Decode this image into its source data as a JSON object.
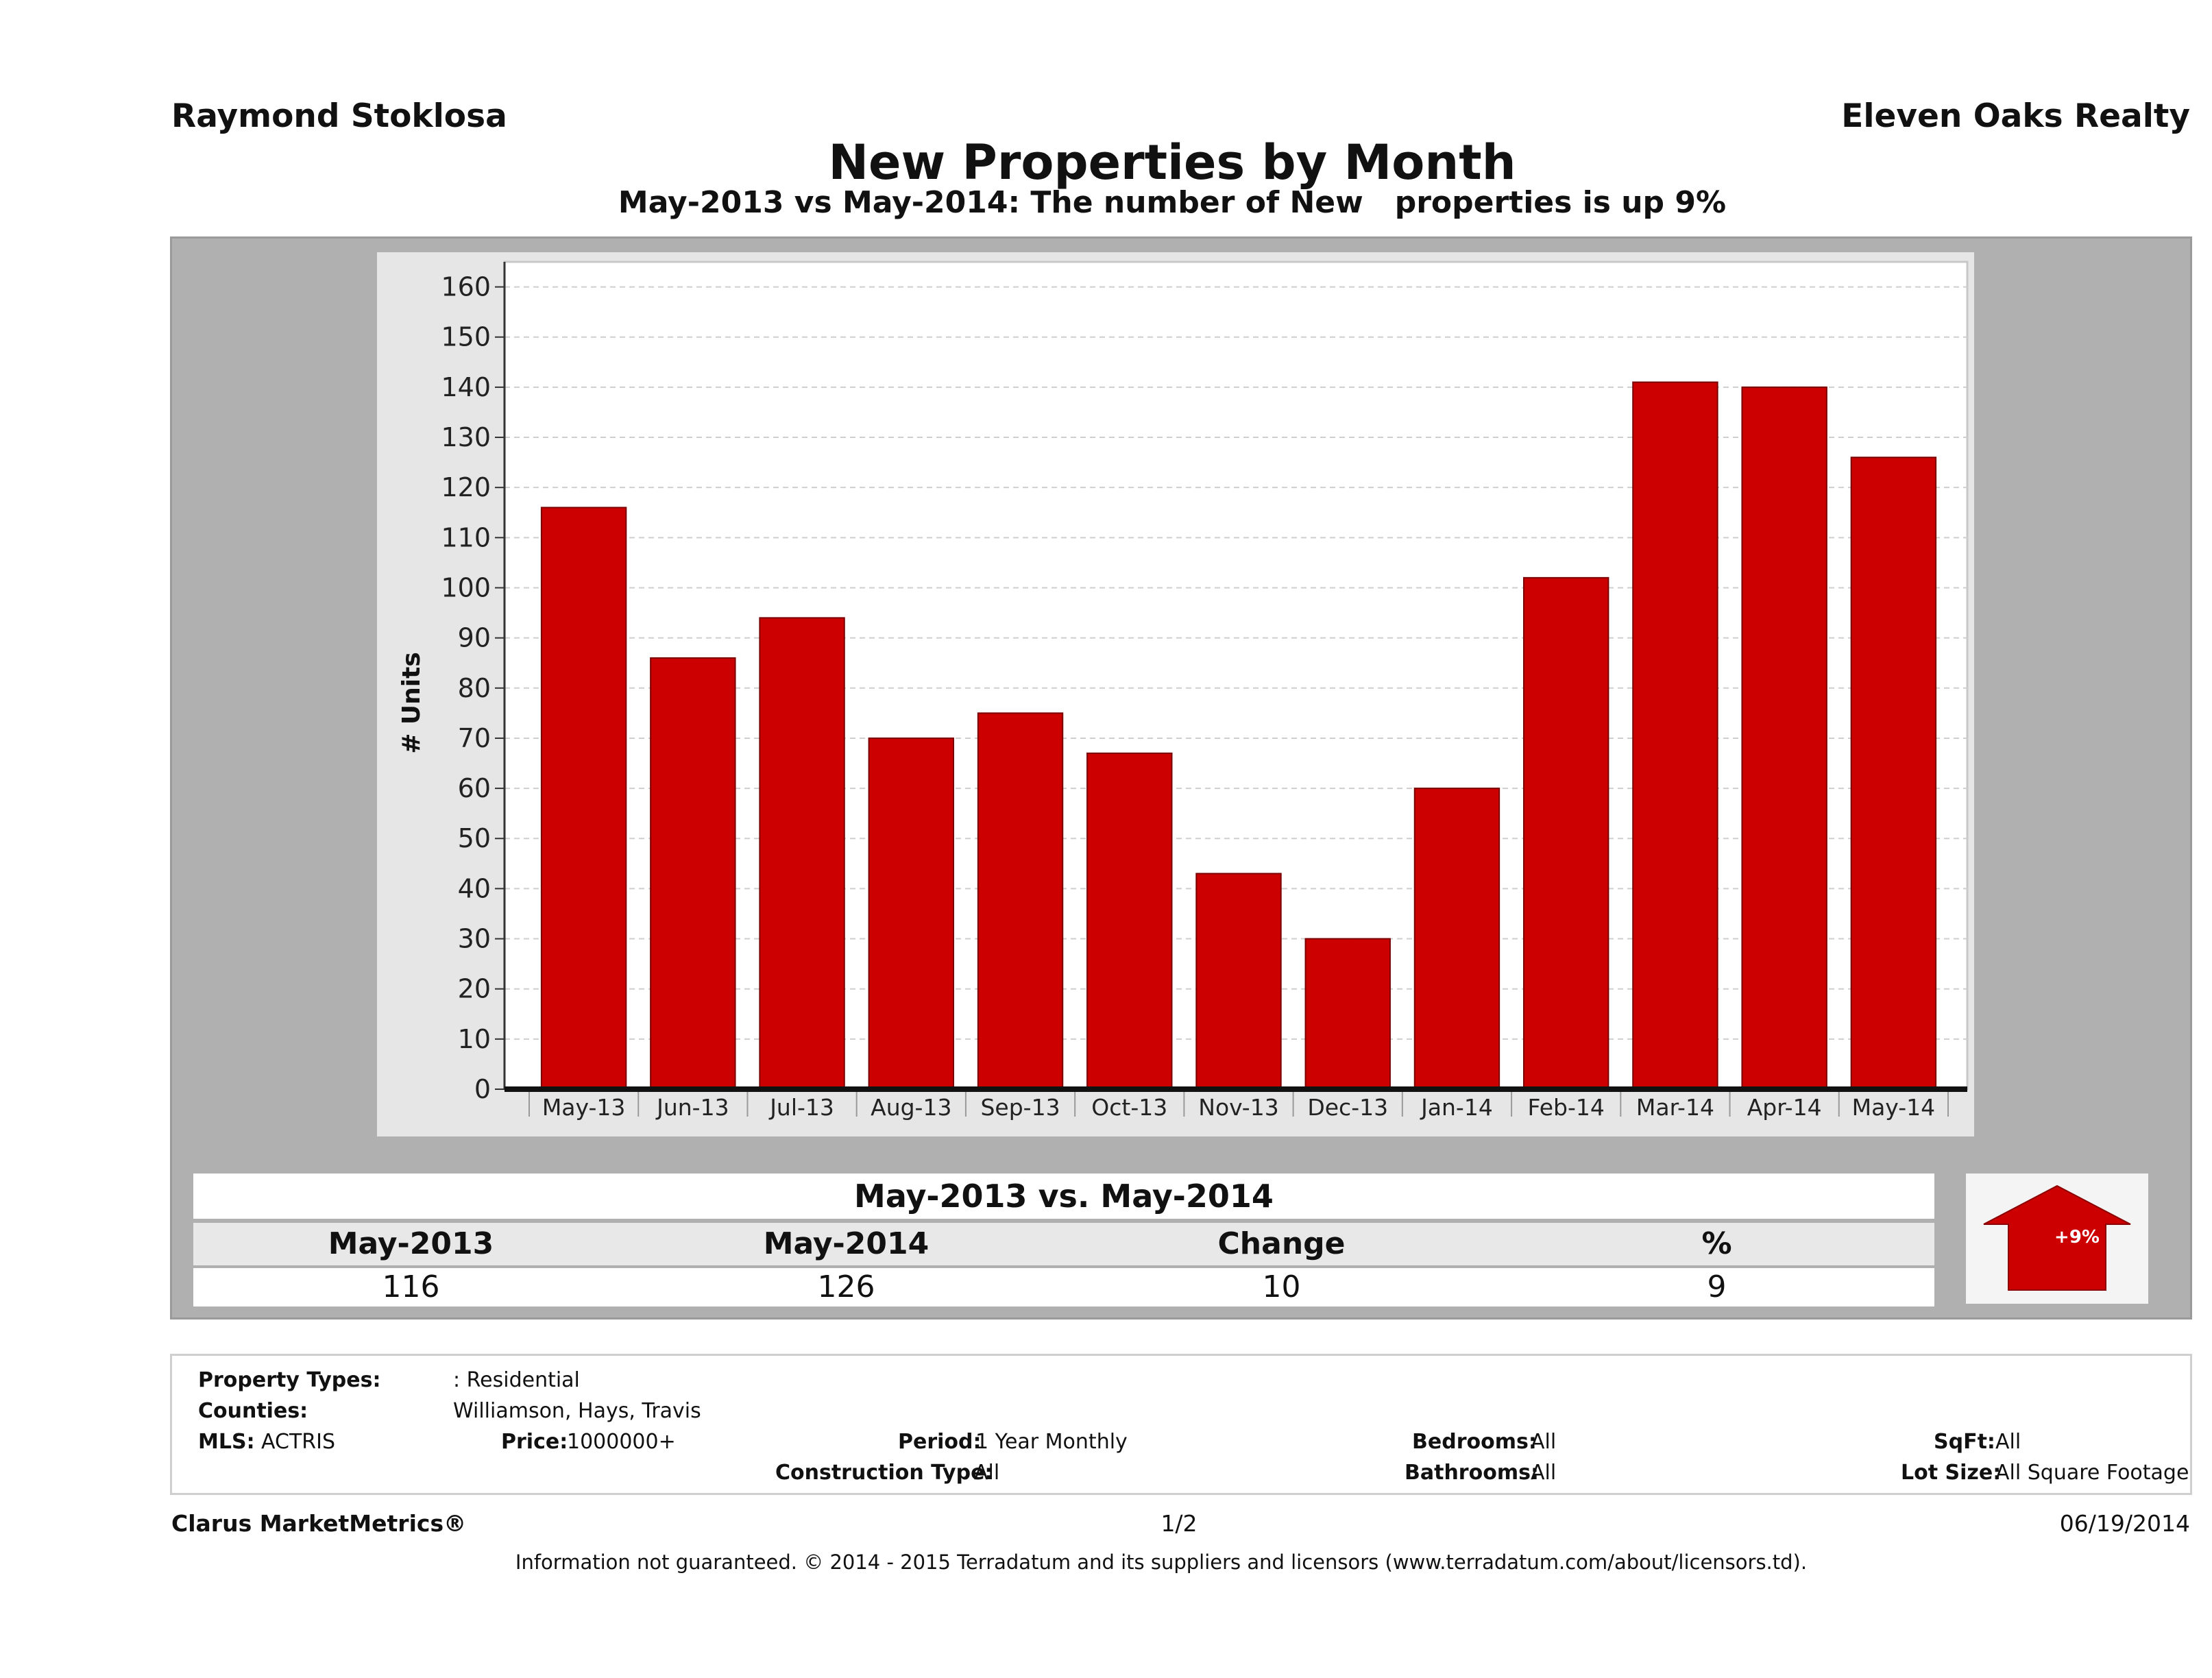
{
  "header": {
    "agent": "Raymond Stoklosa",
    "company": "Eleven Oaks Realty",
    "title": "New Properties by Month",
    "subtitle": "May-2013 vs May-2014: The number of New   properties is up 9%"
  },
  "chart_data": {
    "type": "bar",
    "categories": [
      "May-13",
      "Jun-13",
      "Jul-13",
      "Aug-13",
      "Sep-13",
      "Oct-13",
      "Nov-13",
      "Dec-13",
      "Jan-14",
      "Feb-14",
      "Mar-14",
      "Apr-14",
      "May-14"
    ],
    "values": [
      116,
      86,
      94,
      70,
      75,
      67,
      43,
      30,
      60,
      102,
      141,
      140,
      126
    ],
    "ylabel": "# Units",
    "xlabel": "",
    "ylim": [
      0,
      165
    ],
    "yticks": [
      0,
      10,
      20,
      30,
      40,
      50,
      60,
      70,
      80,
      90,
      100,
      110,
      120,
      130,
      140,
      150,
      160
    ],
    "grid": true,
    "bar_color": "#cc0000"
  },
  "comparison": {
    "title": "May-2013 vs. May-2014",
    "headers": [
      "May-2013",
      "May-2014",
      "Change",
      "%"
    ],
    "values": [
      "116",
      "126",
      "10",
      "9"
    ],
    "badge": "+9%",
    "badge_color": "#cc0000"
  },
  "filters": {
    "property_types_label": "Property Types:",
    "property_types_value": ": Residential",
    "counties_label": "Counties:",
    "counties_value": "Williamson, Hays, Travis",
    "mls_label": "MLS:",
    "mls_value": "ACTRIS",
    "price_label": "Price:",
    "price_value": "1000000+",
    "period_label": "Period:",
    "period_value": "1 Year Monthly",
    "construction_label": "Construction Type:",
    "construction_value": "All",
    "bedrooms_label": "Bedrooms:",
    "bedrooms_value": "All",
    "bathrooms_label": "Bathrooms:",
    "bathrooms_value": "All",
    "sqft_label": "SqFt:",
    "sqft_value": "All",
    "lotsize_label": "Lot Size:",
    "lotsize_value": "All Square Footage"
  },
  "footer": {
    "brand": "Clarus MarketMetrics®",
    "page": "1/2",
    "date": "06/19/2014",
    "disclaimer": "Information not guaranteed. © 2014 - 2015 Terradatum and its suppliers and licensors (www.terradatum.com/about/licensors.td)."
  }
}
